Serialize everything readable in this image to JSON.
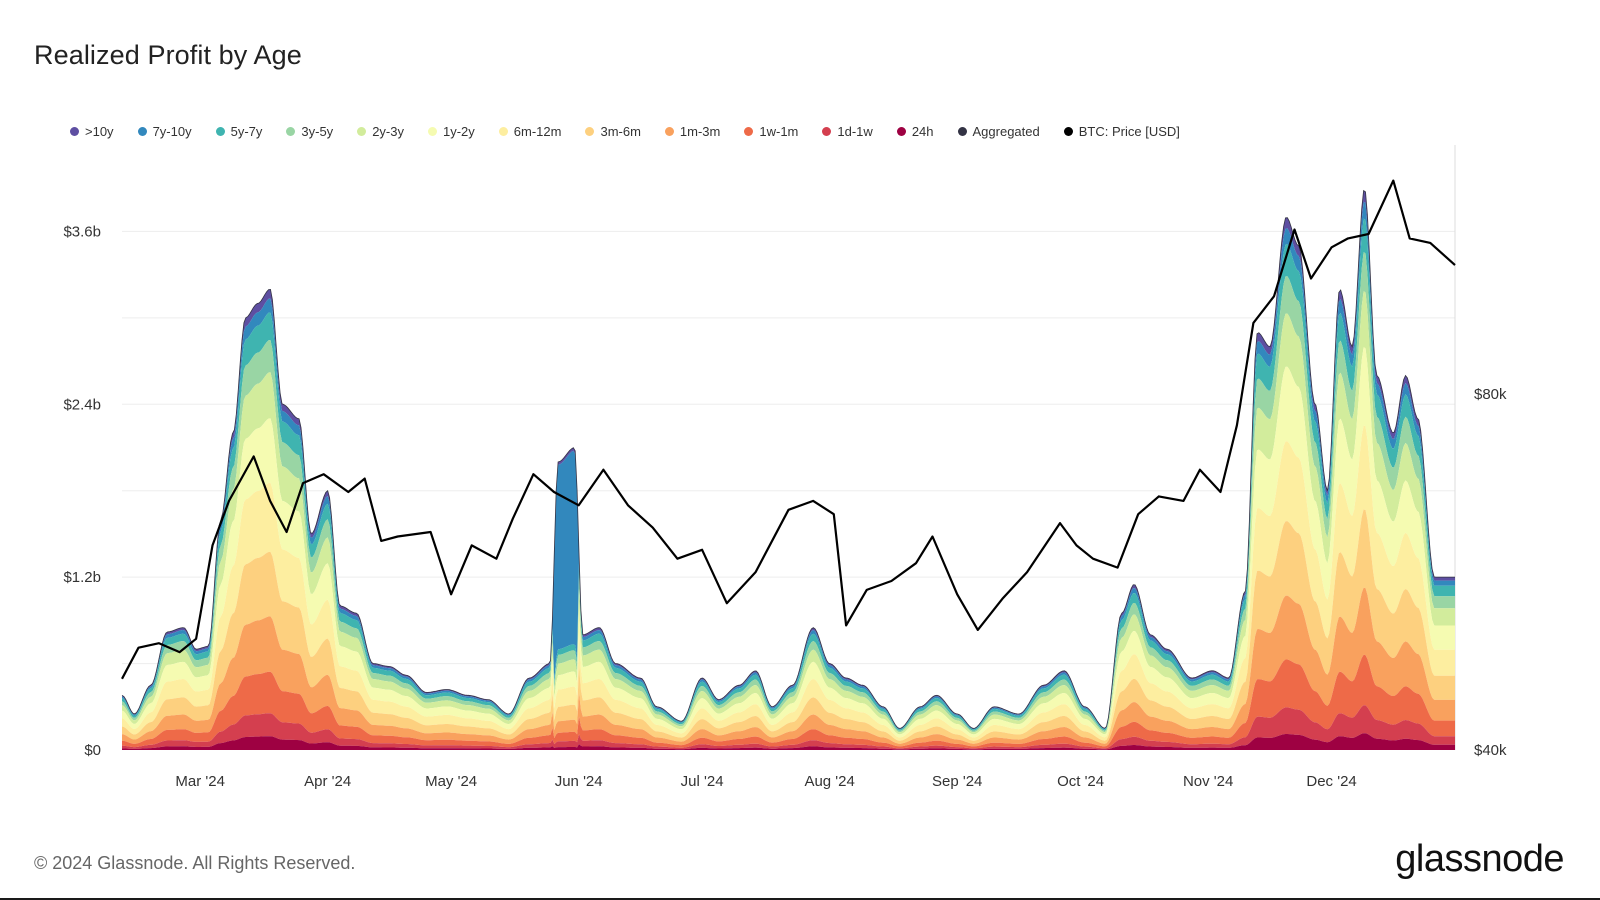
{
  "title": "Realized Profit by Age",
  "footer": "© 2024 Glassnode. All Rights Reserved.",
  "logo": "glassnode",
  "chart_data": {
    "type": "area",
    "title": "Realized Profit by Age",
    "x_labels": [
      "Mar '24",
      "Apr '24",
      "May '24",
      "Jun '24",
      "Jul '24",
      "Aug '24",
      "Sep '24",
      "Oct '24",
      "Nov '24",
      "Dec '24"
    ],
    "y_left": {
      "ticks": [
        "$0",
        "$1.2b",
        "$2.4b",
        "$3.6b"
      ],
      "tick_values": [
        0,
        1.2,
        2.4,
        3.6
      ],
      "unit": "billion USD",
      "range": [
        0,
        4.2
      ]
    },
    "y_right": {
      "ticks": [
        "$40k",
        "$80k"
      ],
      "tick_values": [
        40000,
        80000
      ],
      "range": [
        40000,
        108000
      ]
    },
    "legend_position": "top",
    "grid": true,
    "legend": [
      {
        "name": ">10y",
        "color": "#5e4fa2"
      },
      {
        "name": "7y-10y",
        "color": "#3288bd"
      },
      {
        "name": "5y-7y",
        "color": "#3fb4b0"
      },
      {
        "name": "3y-5y",
        "color": "#99d5a4"
      },
      {
        "name": "2y-3y",
        "color": "#d2ec9c"
      },
      {
        "name": "1y-2y",
        "color": "#f5fbb1"
      },
      {
        "name": "6m-12m",
        "color": "#fdeea0"
      },
      {
        "name": "3m-6m",
        "color": "#fdd07f"
      },
      {
        "name": "1m-3m",
        "color": "#f9a15e"
      },
      {
        "name": "1w-1m",
        "color": "#ee6a48"
      },
      {
        "name": "1d-1w",
        "color": "#d43f4f"
      },
      {
        "name": "24h",
        "color": "#9e0142"
      },
      {
        "name": "Aggregated",
        "color": "#333344"
      },
      {
        "name": "BTC: Price [USD]",
        "color": "#000000"
      }
    ],
    "x_range": [
      "2024-02-11",
      "2024-12-31"
    ],
    "total_profit_billion_usd": [
      [
        "2024-02-11",
        0.38
      ],
      [
        "2024-02-14",
        0.25
      ],
      [
        "2024-02-18",
        0.45
      ],
      [
        "2024-02-22",
        0.82
      ],
      [
        "2024-02-26",
        0.85
      ],
      [
        "2024-02-29",
        0.7
      ],
      [
        "2024-03-03",
        0.72
      ],
      [
        "2024-03-06",
        1.6
      ],
      [
        "2024-03-09",
        2.2
      ],
      [
        "2024-03-12",
        3.0
      ],
      [
        "2024-03-15",
        3.1
      ],
      [
        "2024-03-18",
        3.2
      ],
      [
        "2024-03-21",
        2.4
      ],
      [
        "2024-03-25",
        2.3
      ],
      [
        "2024-03-28",
        1.5
      ],
      [
        "2024-04-01",
        1.8
      ],
      [
        "2024-04-04",
        1.0
      ],
      [
        "2024-04-08",
        0.95
      ],
      [
        "2024-04-12",
        0.6
      ],
      [
        "2024-04-16",
        0.58
      ],
      [
        "2024-04-20",
        0.52
      ],
      [
        "2024-04-25",
        0.4
      ],
      [
        "2024-04-30",
        0.42
      ],
      [
        "2024-05-05",
        0.38
      ],
      [
        "2024-05-10",
        0.35
      ],
      [
        "2024-05-15",
        0.25
      ],
      [
        "2024-05-20",
        0.5
      ],
      [
        "2024-05-25",
        0.6
      ],
      [
        "2024-05-27",
        2.0
      ],
      [
        "2024-05-31",
        2.1
      ],
      [
        "2024-06-02",
        0.8
      ],
      [
        "2024-06-06",
        0.85
      ],
      [
        "2024-06-10",
        0.6
      ],
      [
        "2024-06-16",
        0.5
      ],
      [
        "2024-06-20",
        0.3
      ],
      [
        "2024-06-26",
        0.2
      ],
      [
        "2024-07-01",
        0.5
      ],
      [
        "2024-07-05",
        0.35
      ],
      [
        "2024-07-10",
        0.45
      ],
      [
        "2024-07-14",
        0.55
      ],
      [
        "2024-07-18",
        0.3
      ],
      [
        "2024-07-23",
        0.45
      ],
      [
        "2024-07-28",
        0.85
      ],
      [
        "2024-08-01",
        0.6
      ],
      [
        "2024-08-05",
        0.5
      ],
      [
        "2024-08-09",
        0.45
      ],
      [
        "2024-08-14",
        0.3
      ],
      [
        "2024-08-18",
        0.15
      ],
      [
        "2024-08-23",
        0.3
      ],
      [
        "2024-08-27",
        0.38
      ],
      [
        "2024-09-01",
        0.25
      ],
      [
        "2024-09-05",
        0.15
      ],
      [
        "2024-09-10",
        0.3
      ],
      [
        "2024-09-16",
        0.25
      ],
      [
        "2024-09-22",
        0.45
      ],
      [
        "2024-09-27",
        0.55
      ],
      [
        "2024-10-02",
        0.3
      ],
      [
        "2024-10-07",
        0.15
      ],
      [
        "2024-10-11",
        0.95
      ],
      [
        "2024-10-14",
        1.15
      ],
      [
        "2024-10-18",
        0.8
      ],
      [
        "2024-10-22",
        0.7
      ],
      [
        "2024-10-28",
        0.5
      ],
      [
        "2024-11-02",
        0.55
      ],
      [
        "2024-11-06",
        0.5
      ],
      [
        "2024-11-10",
        1.1
      ],
      [
        "2024-11-13",
        2.9
      ],
      [
        "2024-11-16",
        2.8
      ],
      [
        "2024-11-20",
        3.7
      ],
      [
        "2024-11-23",
        3.5
      ],
      [
        "2024-11-27",
        2.4
      ],
      [
        "2024-11-30",
        1.8
      ],
      [
        "2024-12-03",
        3.2
      ],
      [
        "2024-12-06",
        2.8
      ],
      [
        "2024-12-09",
        3.9
      ],
      [
        "2024-12-12",
        2.6
      ],
      [
        "2024-12-16",
        2.2
      ],
      [
        "2024-12-19",
        2.6
      ],
      [
        "2024-12-22",
        2.3
      ],
      [
        "2024-12-26",
        1.2
      ],
      [
        "2024-12-31",
        1.2
      ]
    ],
    "btc_price_usd": [
      [
        "2024-02-11",
        48000
      ],
      [
        "2024-02-15",
        51500
      ],
      [
        "2024-02-20",
        52000
      ],
      [
        "2024-02-25",
        51000
      ],
      [
        "2024-02-29",
        52500
      ],
      [
        "2024-03-04",
        63000
      ],
      [
        "2024-03-08",
        68000
      ],
      [
        "2024-03-14",
        73000
      ],
      [
        "2024-03-18",
        68000
      ],
      [
        "2024-03-22",
        64500
      ],
      [
        "2024-03-26",
        70000
      ],
      [
        "2024-03-31",
        71000
      ],
      [
        "2024-04-06",
        69000
      ],
      [
        "2024-04-10",
        70500
      ],
      [
        "2024-04-14",
        63500
      ],
      [
        "2024-04-18",
        64000
      ],
      [
        "2024-04-26",
        64500
      ],
      [
        "2024-05-01",
        57500
      ],
      [
        "2024-05-06",
        63000
      ],
      [
        "2024-05-12",
        61500
      ],
      [
        "2024-05-16",
        66000
      ],
      [
        "2024-05-21",
        71000
      ],
      [
        "2024-05-26",
        69000
      ],
      [
        "2024-06-01",
        67500
      ],
      [
        "2024-06-07",
        71500
      ],
      [
        "2024-06-13",
        67500
      ],
      [
        "2024-06-19",
        65000
      ],
      [
        "2024-06-25",
        61500
      ],
      [
        "2024-07-01",
        62500
      ],
      [
        "2024-07-07",
        56500
      ],
      [
        "2024-07-14",
        60000
      ],
      [
        "2024-07-22",
        67000
      ],
      [
        "2024-07-28",
        68000
      ],
      [
        "2024-08-02",
        66500
      ],
      [
        "2024-08-05",
        54000
      ],
      [
        "2024-08-10",
        58000
      ],
      [
        "2024-08-16",
        59000
      ],
      [
        "2024-08-22",
        61000
      ],
      [
        "2024-08-26",
        64000
      ],
      [
        "2024-09-01",
        57500
      ],
      [
        "2024-09-06",
        53500
      ],
      [
        "2024-09-12",
        57000
      ],
      [
        "2024-09-18",
        60000
      ],
      [
        "2024-09-26",
        65500
      ],
      [
        "2024-09-30",
        63000
      ],
      [
        "2024-10-04",
        61500
      ],
      [
        "2024-10-10",
        60500
      ],
      [
        "2024-10-15",
        66500
      ],
      [
        "2024-10-20",
        68500
      ],
      [
        "2024-10-26",
        68000
      ],
      [
        "2024-10-30",
        71500
      ],
      [
        "2024-11-04",
        69000
      ],
      [
        "2024-11-08",
        76500
      ],
      [
        "2024-11-12",
        88000
      ],
      [
        "2024-11-17",
        91000
      ],
      [
        "2024-11-22",
        98500
      ],
      [
        "2024-11-26",
        93000
      ],
      [
        "2024-12-01",
        96500
      ],
      [
        "2024-12-05",
        97500
      ],
      [
        "2024-12-10",
        98000
      ],
      [
        "2024-12-16",
        104000
      ],
      [
        "2024-12-20",
        97500
      ],
      [
        "2024-12-25",
        97000
      ],
      [
        "2024-12-31",
        94500
      ]
    ]
  }
}
